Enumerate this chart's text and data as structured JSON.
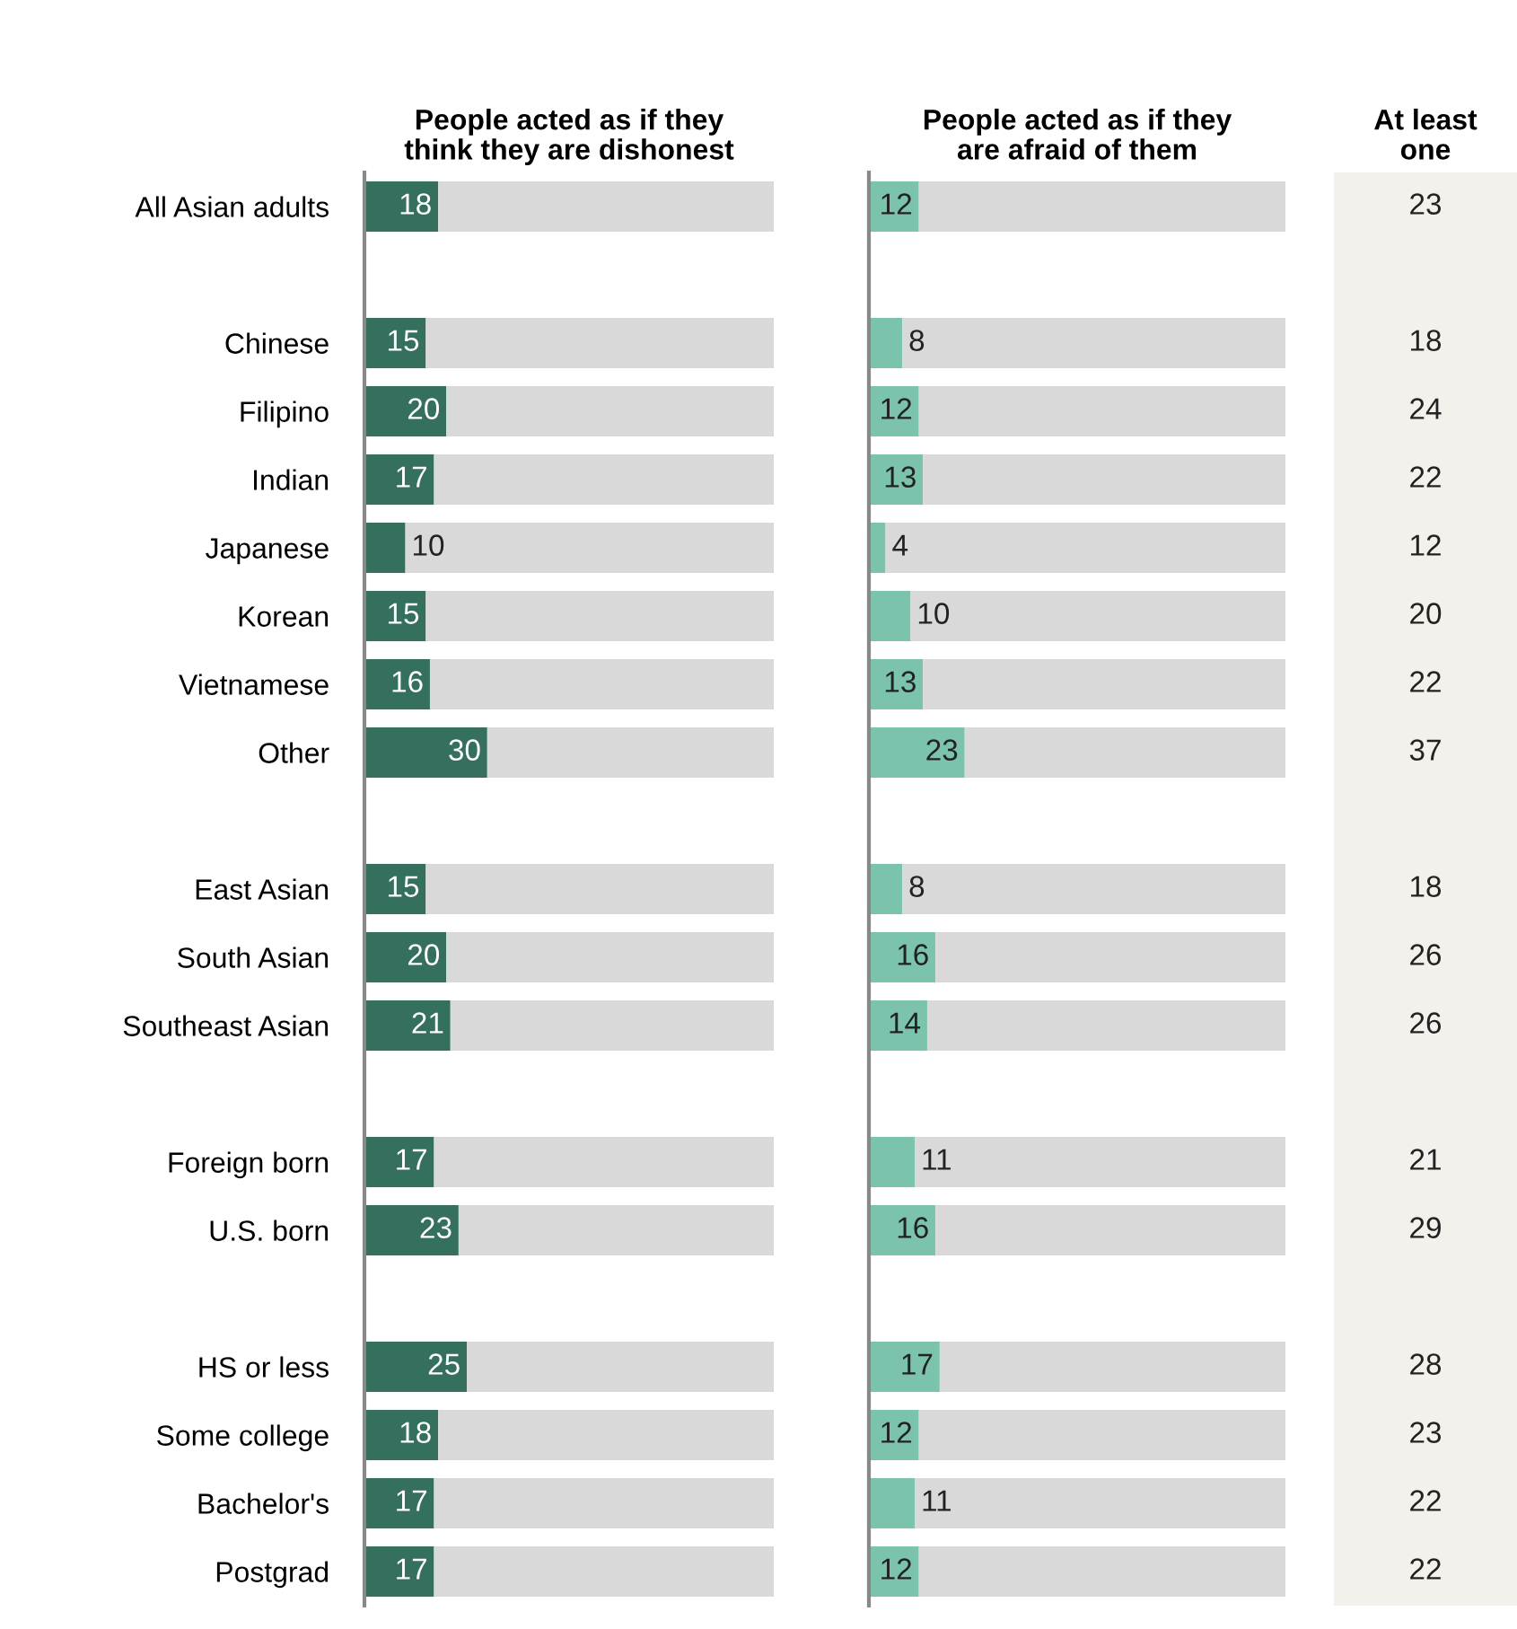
{
  "chart_data": [
    {
      "type": "bar",
      "orientation": "horizontal",
      "stacked": true,
      "title": "People acted as if they\nthink they are dishonest",
      "categories": [
        "All Asian adults",
        null,
        "Chinese",
        "Filipino",
        "Indian",
        "Japanese",
        "Korean",
        "Vietnamese",
        "Other",
        null,
        "East Asian",
        "South Asian",
        "Southeast Asian",
        null,
        "Foreign born",
        "U.S. born",
        null,
        "HS or less",
        "Some college",
        "Bachelor's",
        "Postgrad"
      ],
      "series": [
        {
          "color": "#356f5e",
          "values": [
            18,
            null,
            15,
            20,
            17,
            10,
            15,
            16,
            30,
            null,
            15,
            20,
            21,
            null,
            17,
            23,
            null,
            25,
            18,
            17,
            17
          ],
          "value_labels": [
            "18",
            null,
            "15",
            "20",
            "17",
            "10",
            "15",
            "16",
            "30",
            null,
            "15",
            "20",
            "21",
            null,
            "17",
            "23",
            null,
            "25",
            "18",
            "17",
            "17"
          ]
        },
        {
          "color": "#d9d9d9",
          "values": [
            82,
            null,
            85,
            80,
            83,
            90,
            85,
            84,
            70,
            null,
            85,
            80,
            79,
            null,
            83,
            77,
            null,
            75,
            82,
            83,
            83
          ]
        }
      ],
      "xlim": [
        0,
        100
      ],
      "tick_labels": "y",
      "grid": false
    },
    {
      "type": "bar",
      "orientation": "horizontal",
      "stacked": true,
      "title": "People acted as if they\nare afraid of them",
      "categories": [
        null,
        null,
        null,
        null,
        null,
        null,
        null,
        null,
        null,
        null,
        null,
        null,
        null,
        null,
        null,
        null,
        null,
        null,
        null,
        null,
        null
      ],
      "series": [
        {
          "color": "#7cc3ad",
          "values": [
            12,
            null,
            8,
            12,
            13,
            4,
            10,
            13,
            23,
            null,
            8,
            16,
            14,
            null,
            11,
            16,
            null,
            17,
            12,
            11,
            12
          ],
          "value_labels": [
            "12",
            null,
            "8",
            "12",
            "13",
            "4",
            "10",
            "13",
            "23",
            null,
            "8",
            "16",
            "14",
            null,
            "11",
            "16",
            null,
            "17",
            "12",
            "11",
            "12"
          ]
        },
        {
          "color": "#d9d9d9",
          "values": [
            88,
            null,
            92,
            88,
            87,
            96,
            90,
            87,
            77,
            null,
            92,
            84,
            86,
            null,
            89,
            84,
            null,
            83,
            88,
            89,
            88
          ]
        }
      ],
      "xlim": [
        0,
        100
      ],
      "tick_labels": false,
      "grid": false
    },
    {
      "type": "other",
      "title": "At least\none",
      "categories": [
        null,
        null,
        null,
        null,
        null,
        null,
        null,
        null,
        null,
        null,
        null,
        null,
        null,
        null,
        null,
        null,
        null,
        null,
        null,
        null,
        null
      ],
      "values": [
        23,
        null,
        18,
        24,
        22,
        12,
        20,
        22,
        37,
        null,
        18,
        26,
        26,
        null,
        21,
        29,
        null,
        28,
        23,
        22,
        22
      ],
      "data_labels": true
    }
  ]
}
